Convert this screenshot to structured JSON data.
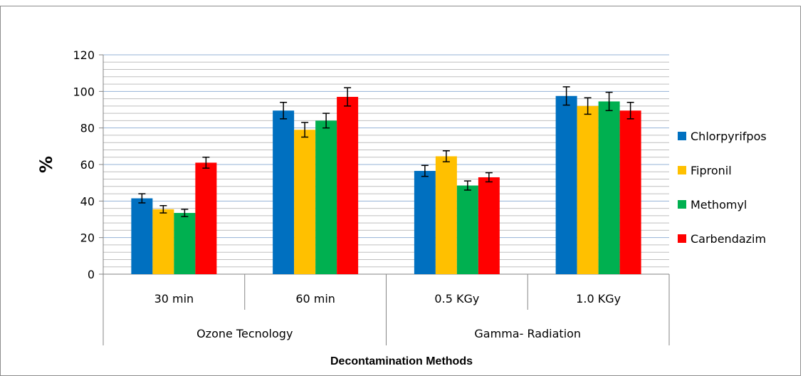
{
  "chart_data": {
    "type": "bar",
    "title": "",
    "ylabel": "%",
    "xlabel": "Decontamination Methods",
    "ylim": [
      0,
      120
    ],
    "yticks": [
      0,
      20,
      40,
      60,
      80,
      100,
      120
    ],
    "minor_step": 4,
    "grid": true,
    "legend_position": "right",
    "categories": [
      "30 min",
      "60 min",
      "0.5 KGy",
      "1.0 KGy"
    ],
    "groups": [
      {
        "label": "Ozone Tecnology",
        "categories": [
          "30 min",
          "60 min"
        ]
      },
      {
        "label": "Gamma- Radiation",
        "categories": [
          "0.5 KGy",
          "1.0 KGy"
        ]
      }
    ],
    "series": [
      {
        "name": "Chlorpyrifpos",
        "color": "#0070C0",
        "values": [
          41.5,
          89.5,
          56.5,
          97.5
        ],
        "errors": [
          2.5,
          4.5,
          3,
          5
        ]
      },
      {
        "name": "Fipronil",
        "color": "#FFC000",
        "values": [
          35.5,
          79,
          64.5,
          92
        ],
        "errors": [
          2,
          4,
          3,
          4.5
        ]
      },
      {
        "name": "Methomyl",
        "color": "#00B050",
        "values": [
          33.5,
          84,
          48.5,
          94.5
        ],
        "errors": [
          2,
          4,
          2.5,
          5
        ]
      },
      {
        "name": "Carbendazim",
        "color": "#FF0000",
        "values": [
          61,
          97,
          53,
          89.5
        ],
        "errors": [
          3,
          5,
          2.5,
          4.5
        ]
      }
    ]
  }
}
